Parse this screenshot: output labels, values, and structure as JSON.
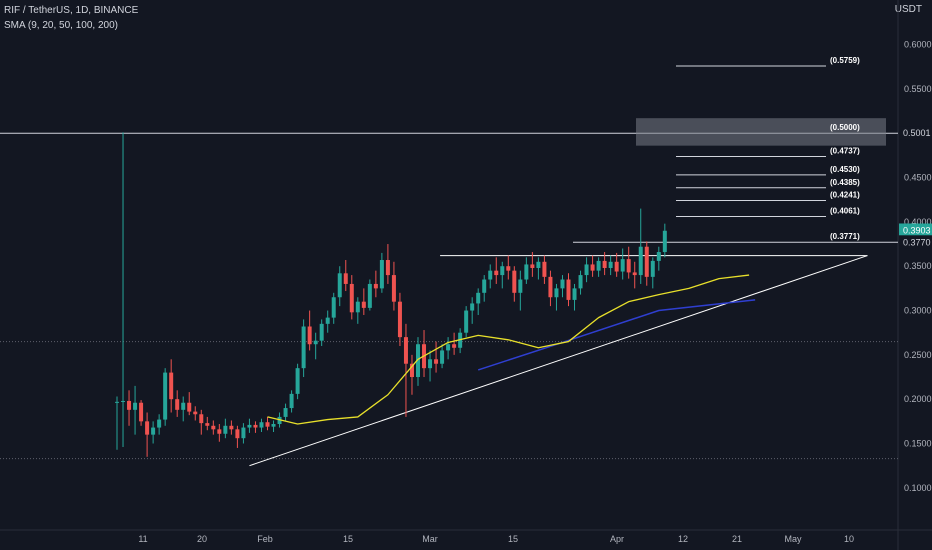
{
  "header": {
    "symbol_line": "RIF / TetherUS, 1D, BINANCE",
    "indicator_line": "SMA (9, 20, 50, 100, 200)",
    "currency": "USDT"
  },
  "colors": {
    "background": "#131722",
    "up": "#26a69a",
    "down": "#ef5350",
    "sma": "#e8e02b",
    "blue_line": "#2f3fd1",
    "trendline": "#ffffff",
    "price_badge": "#26a69a"
  },
  "chart_data": {
    "type": "candlestick",
    "y_ticks": [
      "0.1000",
      "0.1500",
      "0.2000",
      "0.2500",
      "0.3000",
      "0.3500",
      "0.4000",
      "0.4500",
      "0.5000",
      "0.5500",
      "0.6000"
    ],
    "x_ticks": [
      "11",
      "20",
      "Feb",
      "15",
      "Mar",
      "15",
      "Apr",
      "12",
      "21",
      "May",
      "10"
    ],
    "ylim": [
      0.075,
      0.63
    ],
    "current_price": "0.3903",
    "price_labels": [
      "0.5001",
      "0.3770"
    ],
    "levels": [
      {
        "value": 0.5759,
        "label": "(0.5759)"
      },
      {
        "value": 0.5,
        "label": "(0.5000)"
      },
      {
        "value": 0.4737,
        "label": "(0.4737)"
      },
      {
        "value": 0.453,
        "label": "(0.4530)"
      },
      {
        "value": 0.4385,
        "label": "(0.4385)"
      },
      {
        "value": 0.4241,
        "label": "(0.4241)"
      },
      {
        "value": 0.4061,
        "label": "(0.4061)"
      },
      {
        "value": 0.3771,
        "label": "(0.3771)"
      }
    ],
    "candles": [
      [
        0.196,
        0.203,
        0.143,
        0.197
      ],
      [
        0.197,
        0.501,
        0.146,
        0.198
      ],
      [
        0.198,
        0.21,
        0.17,
        0.188
      ],
      [
        0.188,
        0.215,
        0.16,
        0.196
      ],
      [
        0.196,
        0.199,
        0.17,
        0.175
      ],
      [
        0.175,
        0.185,
        0.135,
        0.16
      ],
      [
        0.16,
        0.175,
        0.15,
        0.168
      ],
      [
        0.168,
        0.183,
        0.16,
        0.177
      ],
      [
        0.177,
        0.235,
        0.17,
        0.23
      ],
      [
        0.23,
        0.245,
        0.185,
        0.2
      ],
      [
        0.2,
        0.21,
        0.18,
        0.188
      ],
      [
        0.188,
        0.203,
        0.175,
        0.196
      ],
      [
        0.196,
        0.208,
        0.182,
        0.186
      ],
      [
        0.186,
        0.192,
        0.176,
        0.183
      ],
      [
        0.183,
        0.188,
        0.16,
        0.173
      ],
      [
        0.173,
        0.18,
        0.165,
        0.17
      ],
      [
        0.17,
        0.176,
        0.16,
        0.166
      ],
      [
        0.166,
        0.172,
        0.152,
        0.161
      ],
      [
        0.161,
        0.178,
        0.156,
        0.17
      ],
      [
        0.17,
        0.176,
        0.16,
        0.166
      ],
      [
        0.166,
        0.17,
        0.145,
        0.156
      ],
      [
        0.156,
        0.173,
        0.15,
        0.168
      ],
      [
        0.168,
        0.178,
        0.162,
        0.171
      ],
      [
        0.171,
        0.175,
        0.162,
        0.168
      ],
      [
        0.168,
        0.178,
        0.163,
        0.174
      ],
      [
        0.174,
        0.18,
        0.165,
        0.169
      ],
      [
        0.169,
        0.176,
        0.163,
        0.172
      ],
      [
        0.172,
        0.185,
        0.168,
        0.18
      ],
      [
        0.18,
        0.195,
        0.175,
        0.19
      ],
      [
        0.19,
        0.21,
        0.185,
        0.206
      ],
      [
        0.206,
        0.24,
        0.2,
        0.235
      ],
      [
        0.235,
        0.29,
        0.225,
        0.282
      ],
      [
        0.282,
        0.3,
        0.255,
        0.262
      ],
      [
        0.262,
        0.275,
        0.245,
        0.266
      ],
      [
        0.266,
        0.29,
        0.26,
        0.285
      ],
      [
        0.285,
        0.3,
        0.275,
        0.292
      ],
      [
        0.292,
        0.32,
        0.285,
        0.315
      ],
      [
        0.315,
        0.35,
        0.305,
        0.342
      ],
      [
        0.342,
        0.357,
        0.322,
        0.33
      ],
      [
        0.33,
        0.34,
        0.29,
        0.298
      ],
      [
        0.298,
        0.315,
        0.285,
        0.31
      ],
      [
        0.31,
        0.325,
        0.295,
        0.303
      ],
      [
        0.303,
        0.335,
        0.3,
        0.33
      ],
      [
        0.33,
        0.345,
        0.315,
        0.325
      ],
      [
        0.325,
        0.365,
        0.32,
        0.357
      ],
      [
        0.357,
        0.375,
        0.33,
        0.34
      ],
      [
        0.34,
        0.355,
        0.3,
        0.31
      ],
      [
        0.31,
        0.32,
        0.26,
        0.27
      ],
      [
        0.27,
        0.285,
        0.18,
        0.24
      ],
      [
        0.24,
        0.25,
        0.205,
        0.225
      ],
      [
        0.225,
        0.27,
        0.215,
        0.262
      ],
      [
        0.262,
        0.278,
        0.225,
        0.235
      ],
      [
        0.235,
        0.255,
        0.22,
        0.245
      ],
      [
        0.245,
        0.265,
        0.23,
        0.24
      ],
      [
        0.24,
        0.262,
        0.235,
        0.255
      ],
      [
        0.255,
        0.27,
        0.245,
        0.262
      ],
      [
        0.262,
        0.275,
        0.25,
        0.258
      ],
      [
        0.258,
        0.28,
        0.252,
        0.275
      ],
      [
        0.275,
        0.305,
        0.27,
        0.3
      ],
      [
        0.3,
        0.315,
        0.285,
        0.308
      ],
      [
        0.308,
        0.325,
        0.295,
        0.32
      ],
      [
        0.32,
        0.34,
        0.31,
        0.335
      ],
      [
        0.335,
        0.352,
        0.325,
        0.345
      ],
      [
        0.345,
        0.36,
        0.33,
        0.34
      ],
      [
        0.34,
        0.355,
        0.325,
        0.35
      ],
      [
        0.35,
        0.362,
        0.335,
        0.345
      ],
      [
        0.345,
        0.35,
        0.31,
        0.32
      ],
      [
        0.32,
        0.345,
        0.3,
        0.335
      ],
      [
        0.335,
        0.36,
        0.33,
        0.352
      ],
      [
        0.352,
        0.366,
        0.338,
        0.348
      ],
      [
        0.348,
        0.36,
        0.335,
        0.355
      ],
      [
        0.355,
        0.362,
        0.33,
        0.338
      ],
      [
        0.338,
        0.345,
        0.305,
        0.315
      ],
      [
        0.315,
        0.33,
        0.3,
        0.325
      ],
      [
        0.325,
        0.34,
        0.315,
        0.335
      ],
      [
        0.335,
        0.342,
        0.305,
        0.312
      ],
      [
        0.312,
        0.33,
        0.3,
        0.325
      ],
      [
        0.325,
        0.345,
        0.318,
        0.34
      ],
      [
        0.34,
        0.36,
        0.332,
        0.352
      ],
      [
        0.352,
        0.362,
        0.338,
        0.345
      ],
      [
        0.345,
        0.36,
        0.338,
        0.356
      ],
      [
        0.356,
        0.366,
        0.34,
        0.348
      ],
      [
        0.348,
        0.362,
        0.34,
        0.355
      ],
      [
        0.355,
        0.365,
        0.338,
        0.344
      ],
      [
        0.344,
        0.37,
        0.335,
        0.358
      ],
      [
        0.358,
        0.372,
        0.336,
        0.343
      ],
      [
        0.343,
        0.355,
        0.325,
        0.34
      ],
      [
        0.34,
        0.415,
        0.33,
        0.372
      ],
      [
        0.372,
        0.378,
        0.328,
        0.338
      ],
      [
        0.338,
        0.36,
        0.325,
        0.356
      ],
      [
        0.356,
        0.372,
        0.345,
        0.366
      ],
      [
        0.366,
        0.398,
        0.36,
        0.39
      ]
    ],
    "sma_line": [
      [
        25,
        0.18
      ],
      [
        30,
        0.172
      ],
      [
        35,
        0.177
      ],
      [
        40,
        0.18
      ],
      [
        45,
        0.205
      ],
      [
        50,
        0.245
      ],
      [
        55,
        0.264
      ],
      [
        60,
        0.272
      ],
      [
        65,
        0.267
      ],
      [
        70,
        0.258
      ],
      [
        75,
        0.265
      ],
      [
        80,
        0.292
      ],
      [
        85,
        0.31
      ],
      [
        90,
        0.318
      ],
      [
        95,
        0.325
      ],
      [
        100,
        0.336
      ],
      [
        105,
        0.34
      ]
    ],
    "blue_line": [
      [
        60,
        0.233
      ],
      [
        74,
        0.264
      ],
      [
        90,
        0.3
      ],
      [
        106,
        0.312
      ]
    ],
    "triangle": {
      "base": [
        [
          22,
          0.125
        ],
        [
          123,
          0.362
        ]
      ],
      "top": [
        [
          54,
          0.362
        ],
        [
          123,
          0.362
        ]
      ]
    }
  }
}
